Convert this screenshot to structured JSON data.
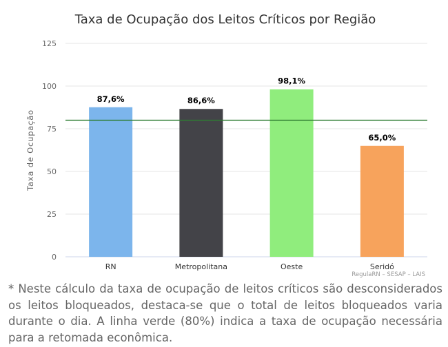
{
  "chart_data": {
    "type": "bar",
    "title": "Taxa de Ocupação dos Leitos Críticos por Região",
    "ylabel": "Taxa de Ocupação",
    "xlabel": "",
    "categories": [
      "RN",
      "Metropolitana",
      "Oeste",
      "Seridó"
    ],
    "values": [
      87.6,
      86.6,
      98.1,
      65.0
    ],
    "value_labels": [
      "87,6%",
      "86,6%",
      "98,1%",
      "65,0%"
    ],
    "bar_colors": [
      "#7cb5ec",
      "#434348",
      "#90ed7d",
      "#f7a35c"
    ],
    "ylim": [
      0,
      125
    ],
    "yticks": [
      0,
      25,
      50,
      75,
      100,
      125
    ],
    "reference_line": {
      "value": 80,
      "color": "#2e7d32"
    },
    "grid": true,
    "legend": "none",
    "credits": "RegulaRN – SESAP – LAIS"
  },
  "footnote": "* Neste cálculo da taxa de ocupação de leitos críticos são desconsiderados os leitos bloqueados, destaca-se que o total de leitos bloqueados varia durante o dia. A linha verde (80%) indica a taxa de ocupação necessária para a retomada econômica."
}
